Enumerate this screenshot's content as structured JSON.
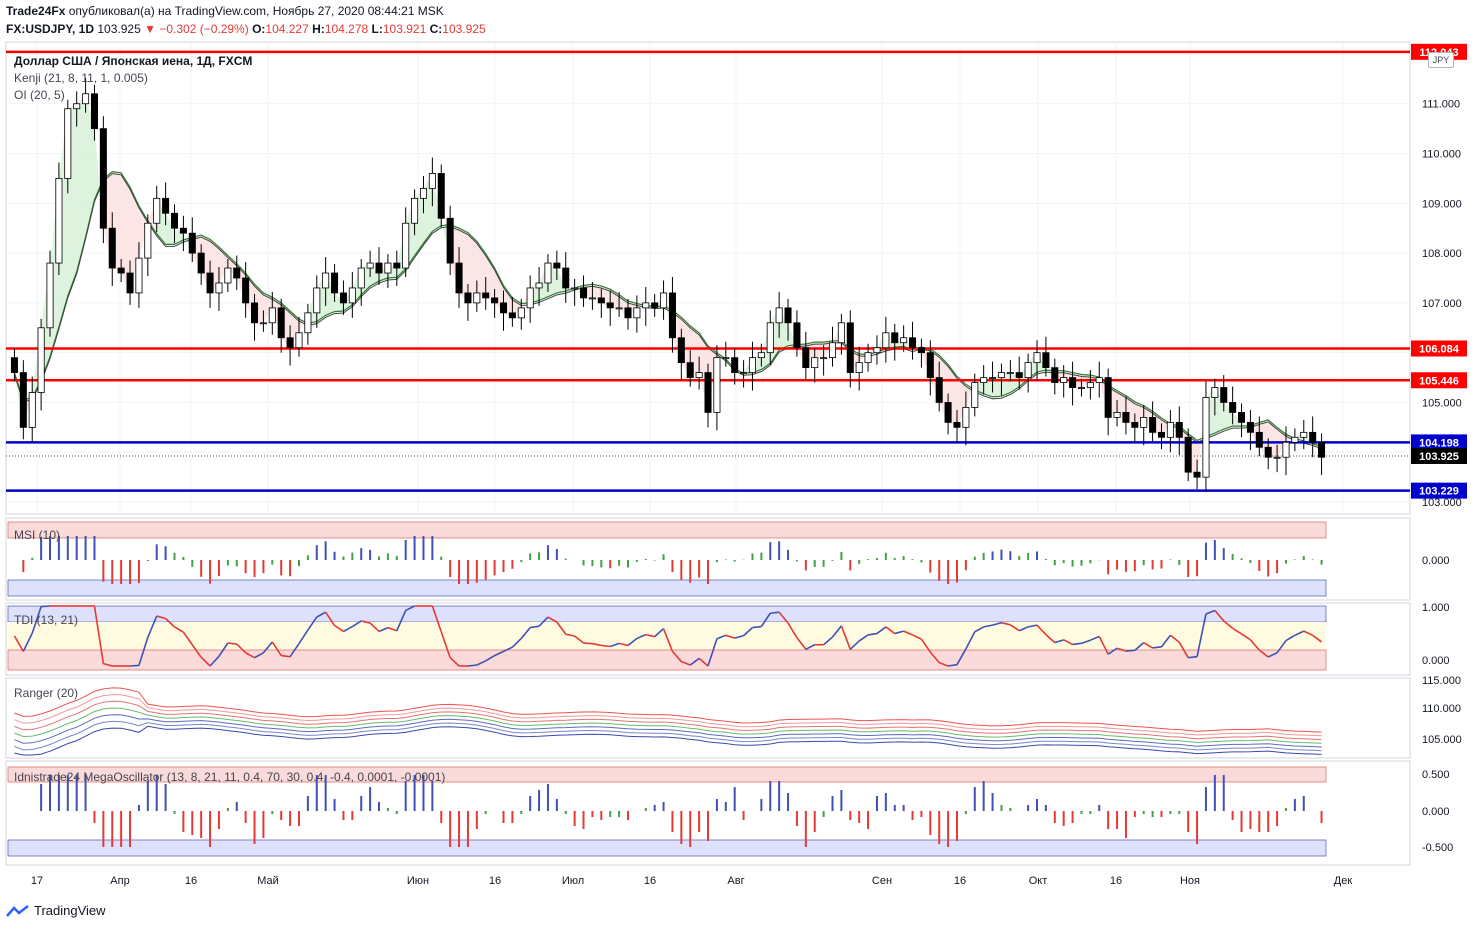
{
  "header": {
    "publisher": "Trade24Fx",
    "published_text": "опубликовал(а) на TradingView.com, Ноябрь 27, 2020 08:44:21 MSK",
    "symbol": "FX:USDJPY, 1D",
    "last": "103.925",
    "change": "▼ −0.302 (−0.29%)",
    "open_label": "O:",
    "open": "104.227",
    "high_label": "H:",
    "high": "104.278",
    "low_label": "L:",
    "low": "103.921",
    "close_label": "C:",
    "close": "103.925"
  },
  "legend": {
    "instrument": "Доллар США / Японская иена, 1Д, FXCM",
    "kenji": "Kenji (21, 8, 11, 1, 0.005)",
    "oi": "OI (20, 5)",
    "currency_badge": "JPY"
  },
  "panes": {
    "msi": "MSI (10)",
    "tdi": "TDI (13, 21)",
    "ranger": "Ranger (20)",
    "mega": "Idnistrade24 MegaOscillator (13, 8, 21, 11, 0.4, 70, 30, 0.4, -0.4, 0.0001, -0.0001)"
  },
  "footer": {
    "brand": "TradingView"
  },
  "colors": {
    "up": "#ffffff",
    "down": "#000000",
    "red_level": "#ff0000",
    "blue_level": "#0000cc",
    "signal": "#e53935",
    "buy": "#3f51b5"
  },
  "chart_data": {
    "type": "candlestick",
    "title": "Доллар США / Японская иена, 1Д, FXCM",
    "ylim": [
      102.8,
      112.2
    ],
    "price_axis_ticks": [
      "111.000",
      "110.000",
      "109.000",
      "108.000",
      "107.000",
      "106.000",
      "105.000",
      "104.000",
      "103.000"
    ],
    "x_tick_labels": [
      "17",
      "Апр",
      "16",
      "Май",
      "Июн",
      "16",
      "Июл",
      "16",
      "Авг",
      "Сен",
      "16",
      "Окт",
      "16",
      "Ноя",
      "Дек"
    ],
    "horizontal_levels": [
      {
        "value": 112.043,
        "label": "112.043",
        "color": "red"
      },
      {
        "value": 106.084,
        "label": "106.084",
        "color": "red"
      },
      {
        "value": 105.446,
        "label": "105.446",
        "color": "red"
      },
      {
        "value": 104.198,
        "label": "104.198",
        "color": "blue"
      },
      {
        "value": 103.925,
        "label": "103.925",
        "color": "black"
      },
      {
        "value": 103.229,
        "label": "103.229",
        "color": "blue"
      }
    ],
    "closes": [
      105.6,
      104.5,
      105.2,
      106.5,
      107.8,
      109.5,
      110.9,
      111.0,
      111.2,
      110.5,
      108.5,
      107.7,
      107.6,
      107.2,
      107.9,
      108.6,
      109.1,
      108.8,
      108.5,
      108.4,
      108.0,
      107.6,
      107.2,
      107.4,
      107.7,
      107.5,
      107.0,
      106.6,
      106.6,
      106.9,
      106.3,
      106.1,
      106.4,
      106.8,
      107.3,
      107.6,
      107.2,
      107.0,
      107.3,
      107.7,
      107.8,
      107.6,
      107.8,
      107.7,
      108.6,
      109.1,
      109.3,
      109.6,
      108.7,
      107.8,
      107.2,
      107.0,
      107.2,
      107.1,
      107.0,
      106.8,
      106.7,
      106.9,
      107.3,
      107.4,
      107.8,
      107.7,
      107.3,
      107.3,
      107.1,
      107.1,
      107.0,
      106.9,
      106.9,
      106.7,
      106.9,
      107.0,
      106.9,
      107.2,
      106.3,
      105.8,
      105.5,
      105.6,
      104.8,
      105.9,
      105.9,
      105.6,
      105.6,
      105.9,
      106.0,
      106.6,
      106.9,
      106.6,
      106.1,
      105.7,
      105.9,
      105.9,
      106.2,
      106.6,
      105.6,
      105.8,
      106.0,
      106.1,
      106.4,
      106.2,
      106.3,
      106.1,
      106.0,
      105.5,
      105.0,
      104.6,
      104.5,
      104.9,
      105.4,
      105.5,
      105.5,
      105.6,
      105.6,
      105.5,
      105.8,
      106.0,
      105.7,
      105.4,
      105.5,
      105.3,
      105.3,
      105.4,
      105.5,
      104.7,
      104.8,
      104.6,
      104.5,
      104.7,
      104.4,
      104.3,
      104.6,
      104.3,
      103.6,
      103.5,
      105.1,
      105.3,
      105.0,
      104.8,
      104.6,
      104.4,
      104.1,
      103.9,
      103.9,
      104.2,
      104.3,
      104.4,
      104.2,
      103.9
    ]
  }
}
